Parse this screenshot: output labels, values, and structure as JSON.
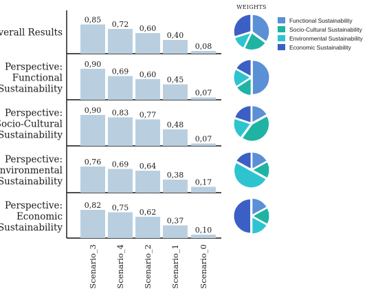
{
  "chart_data": {
    "type": "bar",
    "categories": [
      "Scenario_3",
      "Scenario_4",
      "Scenario_2",
      "Scenario_1",
      "Scenario_0"
    ],
    "ylim": [
      0,
      1
    ],
    "panels": [
      {
        "label": "Overall Results",
        "values": [
          0.85,
          0.72,
          0.6,
          0.4,
          0.08
        ],
        "value_labels": [
          "0,85",
          "0,72",
          "0,60",
          "0,40",
          "0,08"
        ],
        "weights": [
          0.35,
          0.22,
          0.13,
          0.3
        ]
      },
      {
        "label": "Perspective: Functional Sustainability",
        "values": [
          0.9,
          0.69,
          0.6,
          0.45,
          0.07
        ],
        "value_labels": [
          "0,90",
          "0,69",
          "0,60",
          "0,45",
          "0,07"
        ],
        "weights": [
          0.5,
          0.16,
          0.17,
          0.17
        ]
      },
      {
        "label": "Perspective: Socio-Cultural Sustainability",
        "values": [
          0.9,
          0.83,
          0.77,
          0.48,
          0.07
        ],
        "value_labels": [
          "0,90",
          "0,83",
          "0,77",
          "0,48",
          "0,07"
        ],
        "weights": [
          0.17,
          0.43,
          0.2,
          0.2
        ]
      },
      {
        "label": "Perspective: Environmental Sustainability",
        "values": [
          0.76,
          0.69,
          0.64,
          0.38,
          0.17
        ],
        "value_labels": [
          "0,76",
          "0,69",
          "0,64",
          "0,38",
          "0,17"
        ],
        "weights": [
          0.17,
          0.16,
          0.5,
          0.17
        ]
      },
      {
        "label": "Perspective: Economic Sustainability",
        "values": [
          0.82,
          0.75,
          0.62,
          0.37,
          0.1
        ],
        "value_labels": [
          "0,82",
          "0,75",
          "0,62",
          "0,37",
          "0,10"
        ],
        "weights": [
          0.17,
          0.16,
          0.17,
          0.5
        ]
      }
    ],
    "weights_title": "WEIGHTS",
    "legend": [
      {
        "name": "Functional Sustainability",
        "color": "#5b8fd6"
      },
      {
        "name": "Socio-Cultural Sustainability",
        "color": "#1fb3a3"
      },
      {
        "name": "Environmental Sustainability",
        "color": "#2ec4cf"
      },
      {
        "name": "Economic Sustainability",
        "color": "#3b5fc4"
      }
    ],
    "legend_placement": "top-right",
    "bar_color": "#b9cfe0",
    "grid": false
  }
}
